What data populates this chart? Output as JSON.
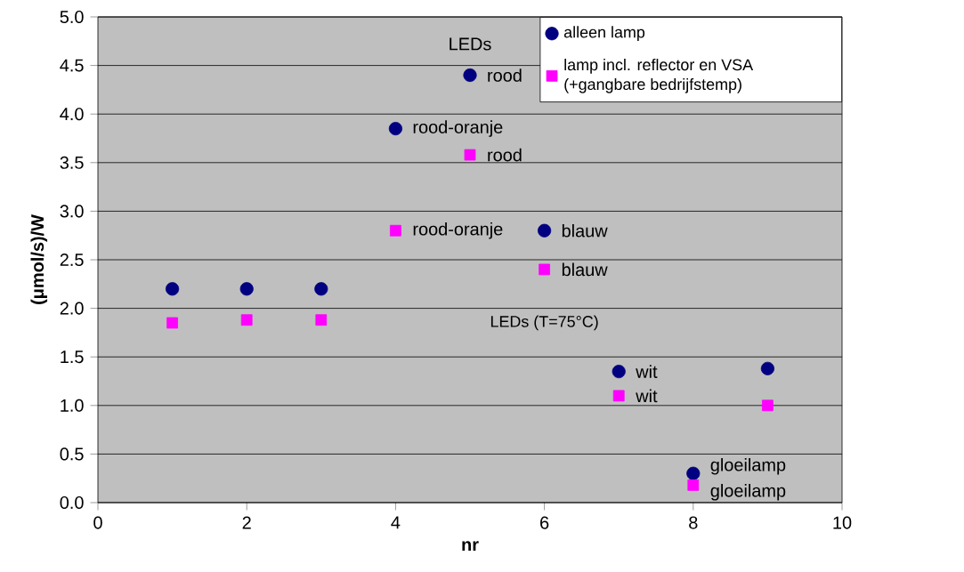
{
  "chart_data": {
    "type": "scatter",
    "xlabel": "nr",
    "ylabel": "(μmol/s)/W",
    "x": [
      1,
      2,
      3,
      4,
      5,
      6,
      7,
      8,
      9
    ],
    "series": [
      {
        "name": "alleen lamp",
        "color": "#000080",
        "marker": "circle",
        "values": [
          2.2,
          2.2,
          2.2,
          3.85,
          4.4,
          2.8,
          1.35,
          0.3,
          1.38
        ]
      },
      {
        "name": "lamp incl. reflector en VSA (+gangbare bedrijfstemp)",
        "color": "#ff00ff",
        "marker": "square",
        "values": [
          1.85,
          1.88,
          1.88,
          2.8,
          3.58,
          2.4,
          1.1,
          0.18,
          1.0
        ]
      }
    ],
    "xlim": [
      0,
      10
    ],
    "xticks": [
      0,
      2,
      4,
      6,
      8,
      10
    ],
    "ylim": [
      0,
      5
    ],
    "yticks": [
      {
        "value": 0,
        "label": "0.0"
      },
      {
        "value": 0.5,
        "label": "0.5"
      },
      {
        "value": 1,
        "label": "1.0"
      },
      {
        "value": 1.5,
        "label": "1.5"
      },
      {
        "value": 2,
        "label": "2.0"
      },
      {
        "value": 2.5,
        "label": "2.5"
      },
      {
        "value": 3,
        "label": "3.0"
      },
      {
        "value": 3.5,
        "label": "3.5"
      },
      {
        "value": 4,
        "label": "4.0"
      },
      {
        "value": 4.5,
        "label": "4.5"
      },
      {
        "value": 5,
        "label": "5.0"
      }
    ],
    "grid": "y",
    "legend": "top right",
    "annotations": [
      "LEDs",
      "LEDs (T=75°C)",
      {
        "text": "rood",
        "x": 5,
        "y": 4.4
      },
      {
        "text": "rood-oranje",
        "x": 4,
        "y": 3.85
      },
      {
        "text": "rood",
        "x": 5,
        "y": 3.58
      },
      {
        "text": "rood-oranje",
        "x": 4,
        "y": 2.8
      },
      {
        "text": "blauw",
        "x": 6,
        "y": 2.8
      },
      {
        "text": "blauw",
        "x": 6,
        "y": 2.4
      },
      {
        "text": "wit",
        "x": 7,
        "y": 1.35
      },
      {
        "text": "wit",
        "x": 7,
        "y": 1.1
      },
      {
        "text": "gloeilamp",
        "x": 8,
        "y": 0.3
      },
      {
        "text": "gloeilamp",
        "x": 8,
        "y": 0.18
      }
    ]
  }
}
